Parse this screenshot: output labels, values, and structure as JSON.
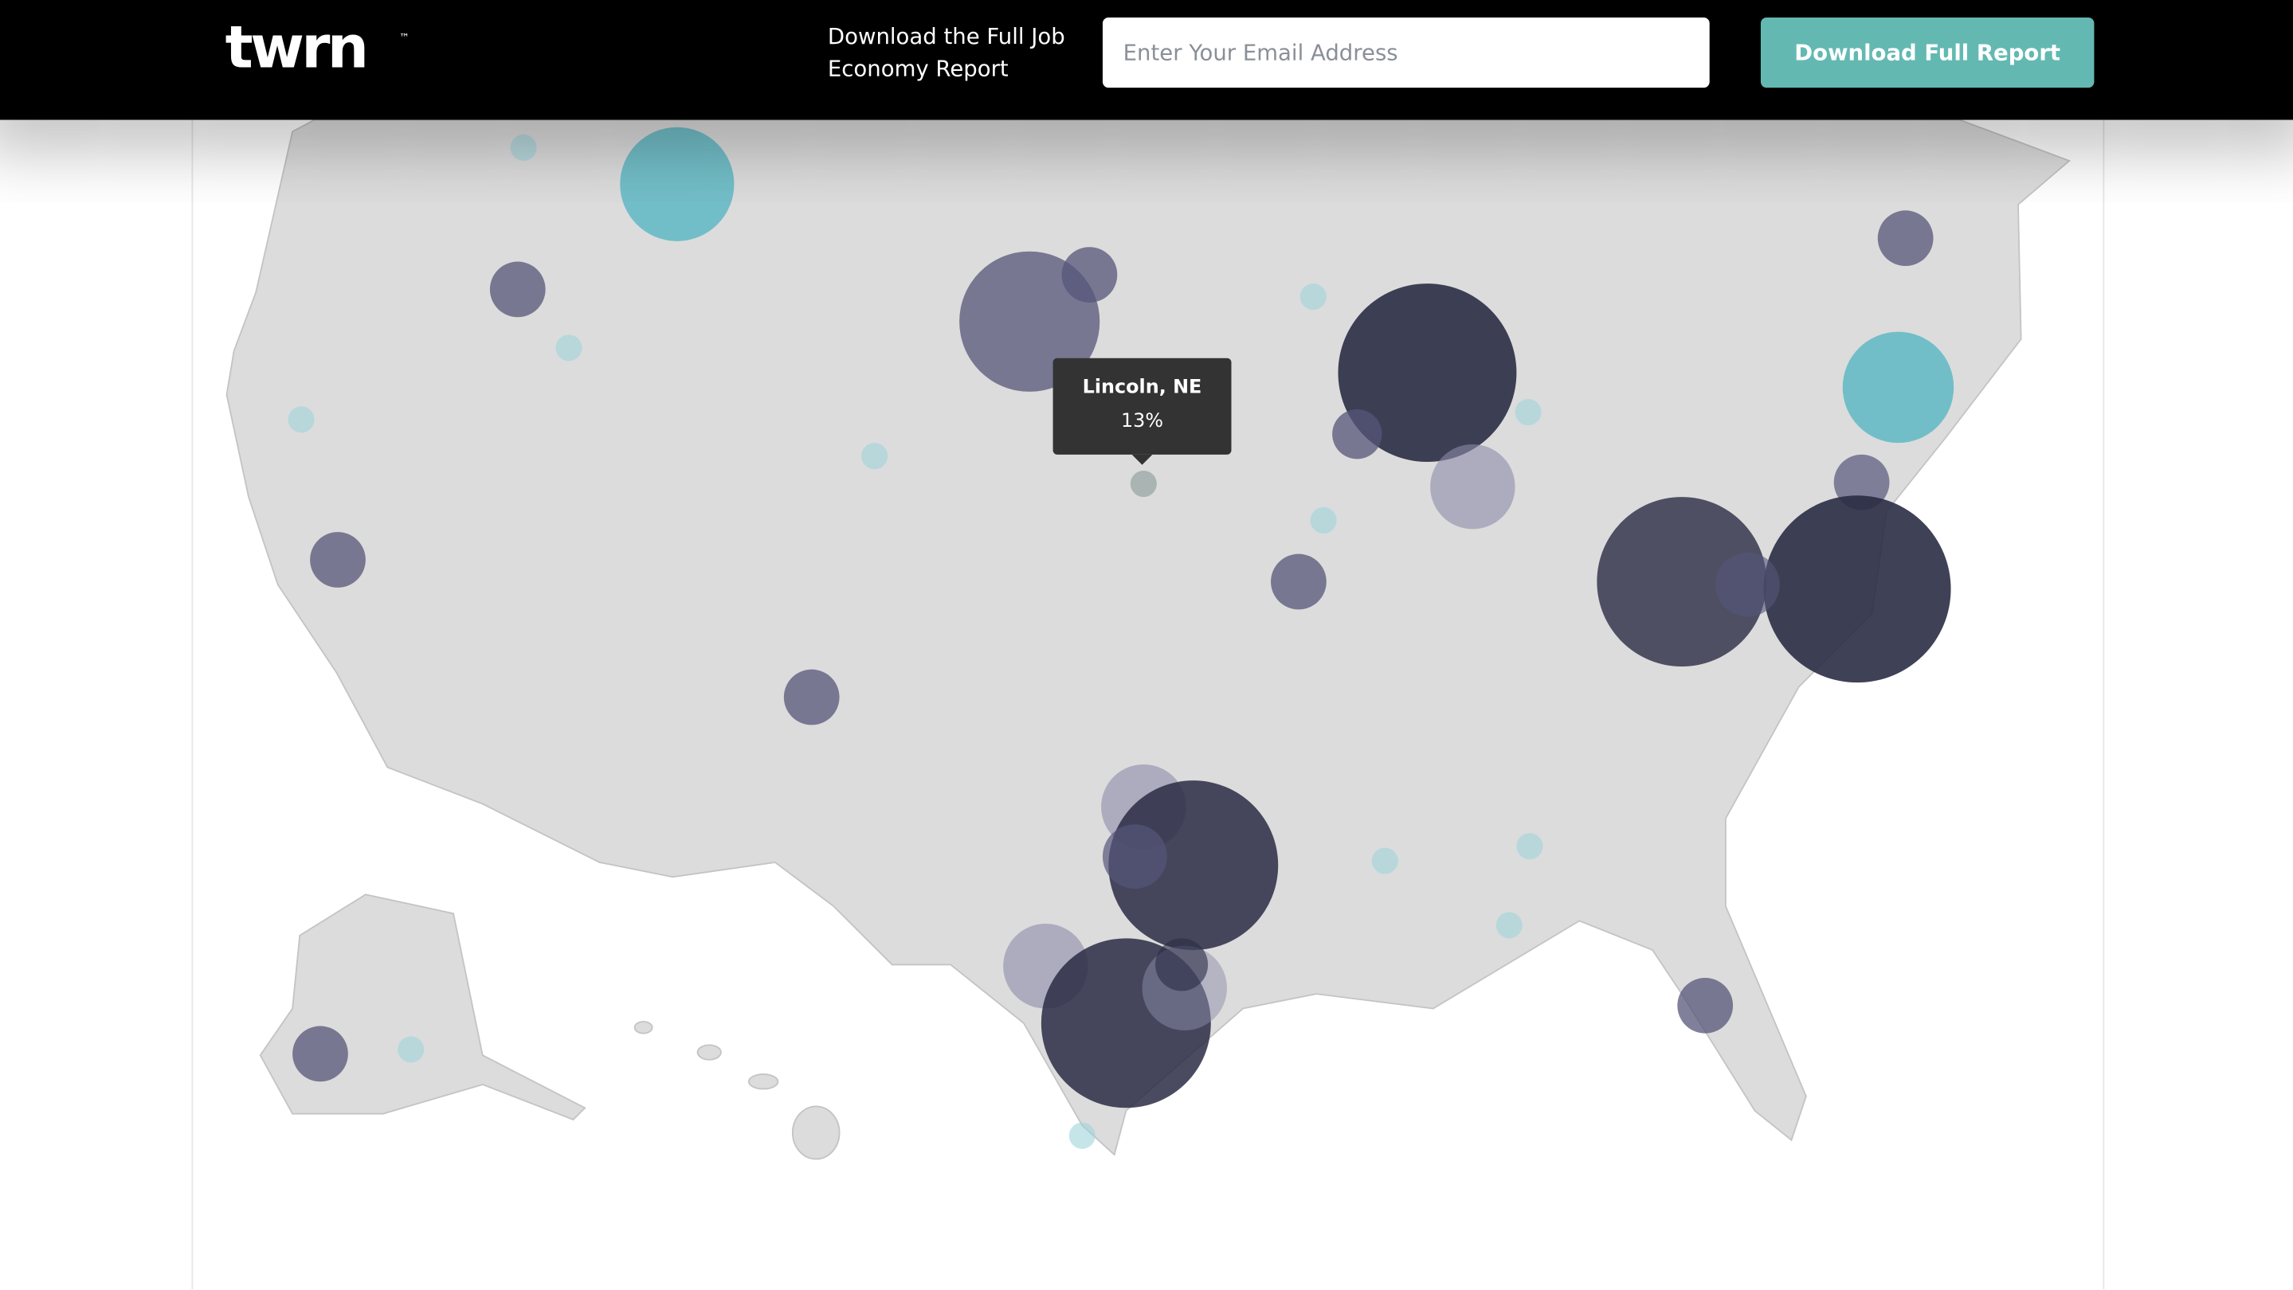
{
  "header": {
    "logo": "twrn",
    "logo_mark": "™",
    "cta_text": "Download the Full Job Economy Report",
    "email_placeholder": "Enter Your Email Address",
    "button": "Download Full Report"
  },
  "tooltip": {
    "title": "Lincoln, NE",
    "value": "13%"
  }
}
